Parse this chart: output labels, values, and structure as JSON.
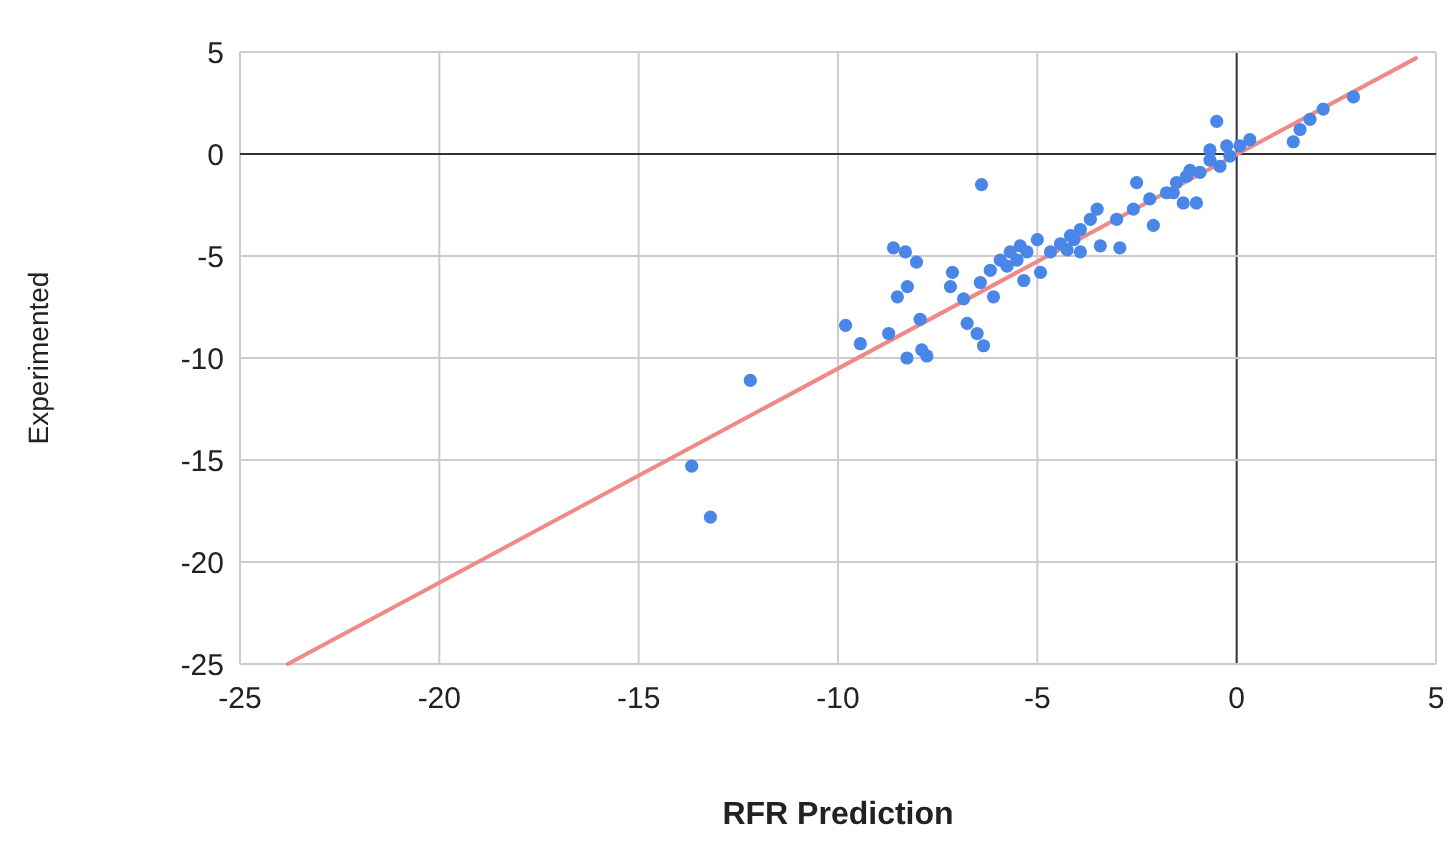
{
  "chart_data": {
    "type": "scatter",
    "xlabel": "RFR Prediction",
    "ylabel": "Experimented",
    "xlim": [
      -25,
      5
    ],
    "ylim": [
      -25,
      5
    ],
    "xticks": [
      -25,
      -20,
      -15,
      -10,
      -5,
      0,
      5
    ],
    "yticks": [
      -25,
      -20,
      -15,
      -10,
      -5,
      0,
      5
    ],
    "grid": true,
    "series": [
      {
        "type": "line",
        "color": "#ef8a86",
        "marker": "none",
        "line_style": "solid",
        "x": [
          -23.8,
          4.5
        ],
        "values": [
          -25,
          4.7
        ]
      },
      {
        "color": "#4a86e8",
        "marker": "circle",
        "x": [
          -13.67,
          -13.2,
          -12.2,
          -9.81,
          -9.44,
          -8.73,
          -8.61,
          -8.31,
          -8.03,
          -8.51,
          -8.26,
          -7.94,
          -8.27,
          -7.9,
          -7.77,
          -7.13,
          -7.18,
          -6.85,
          -6.76,
          -6.51,
          -6.35,
          -6.4,
          -6.1,
          -6.43,
          -6.18,
          -5.93,
          -5.76,
          -5.68,
          -5.51,
          -5.43,
          -5.26,
          -5.34,
          -5.0,
          -4.92,
          -4.67,
          -4.42,
          -4.25,
          -4.17,
          -4.08,
          -3.92,
          -3.92,
          -3.67,
          -3.5,
          -3.42,
          -2.93,
          -3.01,
          -2.59,
          -2.51,
          -2.09,
          -2.18,
          -1.76,
          -1.59,
          -1.51,
          -1.34,
          -1.26,
          -1.17,
          -1.01,
          -0.92,
          -0.67,
          -0.67,
          -0.5,
          -0.42,
          -0.25,
          -0.17,
          0.08,
          0.33,
          1.42,
          1.59,
          1.84,
          2.17,
          2.93
        ],
        "values": [
          -15.3,
          -17.8,
          -11.1,
          -8.4,
          -9.3,
          -8.8,
          -4.6,
          -4.8,
          -5.3,
          -7.0,
          -6.5,
          -8.1,
          -10.0,
          -9.6,
          -9.9,
          -5.8,
          -6.5,
          -7.1,
          -8.3,
          -8.8,
          -9.4,
          -1.5,
          -7.0,
          -6.3,
          -5.7,
          -5.2,
          -5.5,
          -4.8,
          -5.2,
          -4.5,
          -4.8,
          -6.2,
          -4.2,
          -5.8,
          -4.8,
          -4.4,
          -4.7,
          -4.0,
          -4.2,
          -4.8,
          -3.7,
          -3.2,
          -2.7,
          -4.5,
          -4.6,
          -3.2,
          -2.7,
          -1.4,
          -3.5,
          -2.2,
          -1.9,
          -1.9,
          -1.4,
          -2.4,
          -1.1,
          -0.8,
          -2.4,
          -0.9,
          -0.3,
          0.2,
          1.6,
          -0.6,
          0.4,
          -0.1,
          0.4,
          0.7,
          0.6,
          1.2,
          1.7,
          2.2,
          2.8
        ]
      }
    ]
  }
}
